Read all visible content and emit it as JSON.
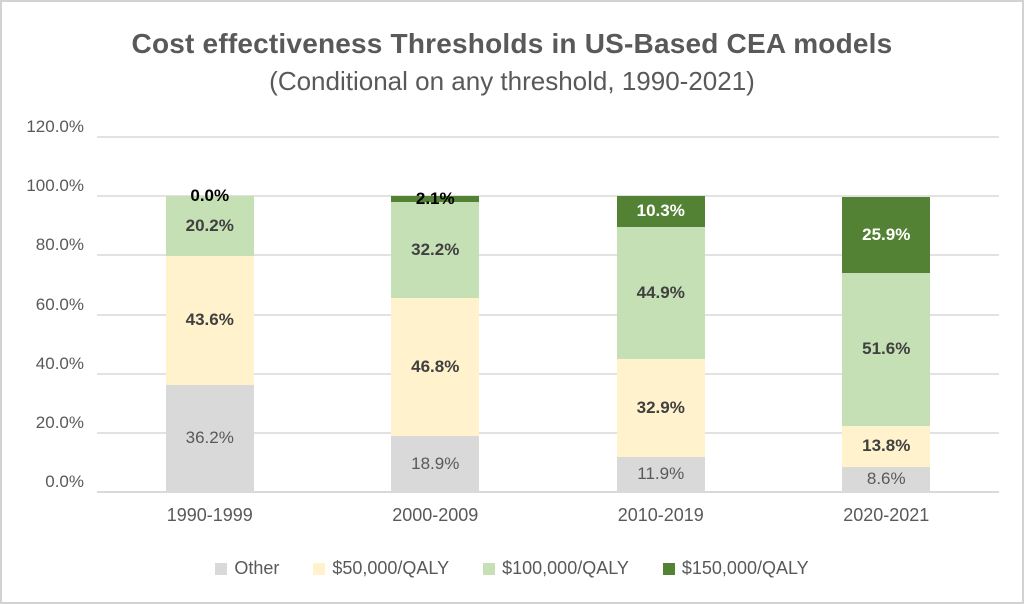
{
  "header": {
    "title": "Cost effectiveness Thresholds in US-Based CEA models",
    "subtitle": "(Conditional on any threshold, 1990-2021)"
  },
  "chart_data": {
    "type": "bar",
    "stacked": true,
    "title": "Cost effectiveness Thresholds in US-Based CEA models",
    "subtitle": "(Conditional on any threshold, 1990-2021)",
    "xlabel": "",
    "ylabel": "",
    "grid": true,
    "legend_position": "bottom",
    "ylim": [
      0,
      120
    ],
    "categories": [
      "1990-1999",
      "2000-2009",
      "2010-2019",
      "2020-2021"
    ],
    "series": [
      {
        "name": "Other",
        "color": "#d9d9d9",
        "label_color": "#595959",
        "label_weight": 400,
        "values": [
          36.2,
          18.9,
          11.9,
          8.6
        ],
        "labels": [
          "36.2%",
          "18.9%",
          "11.9%",
          "8.6%"
        ]
      },
      {
        "name": "$50,000/QALY",
        "color": "#fff2cc",
        "label_color": "#404040",
        "label_weight": 700,
        "values": [
          43.6,
          46.8,
          32.9,
          13.8
        ],
        "labels": [
          "43.6%",
          "46.8%",
          "32.9%",
          "13.8%"
        ]
      },
      {
        "name": "$100,000/QALY",
        "color": "#c5e0b4",
        "label_color": "#404040",
        "label_weight": 700,
        "values": [
          20.2,
          32.2,
          44.9,
          51.6
        ],
        "labels": [
          "20.2%",
          "32.2%",
          "44.9%",
          "51.6%"
        ]
      },
      {
        "name": "$150,000/QALY",
        "color": "#548235",
        "label_color": "#ffffff",
        "label_weight": 700,
        "small_value_label_color": "#000000",
        "small_value_threshold": 3,
        "values": [
          0.0,
          2.1,
          10.3,
          25.9
        ],
        "labels": [
          "0.0%",
          "2.1%",
          "10.3%",
          "25.9%"
        ]
      }
    ],
    "y_axis": {
      "min": 0,
      "max": 120,
      "step": 20,
      "ticks": [
        0,
        20,
        40,
        60,
        80,
        100,
        120
      ],
      "tick_labels": [
        "0.0%",
        "20.0%",
        "40.0%",
        "60.0%",
        "80.0%",
        "100.0%",
        "120.0%"
      ]
    }
  }
}
